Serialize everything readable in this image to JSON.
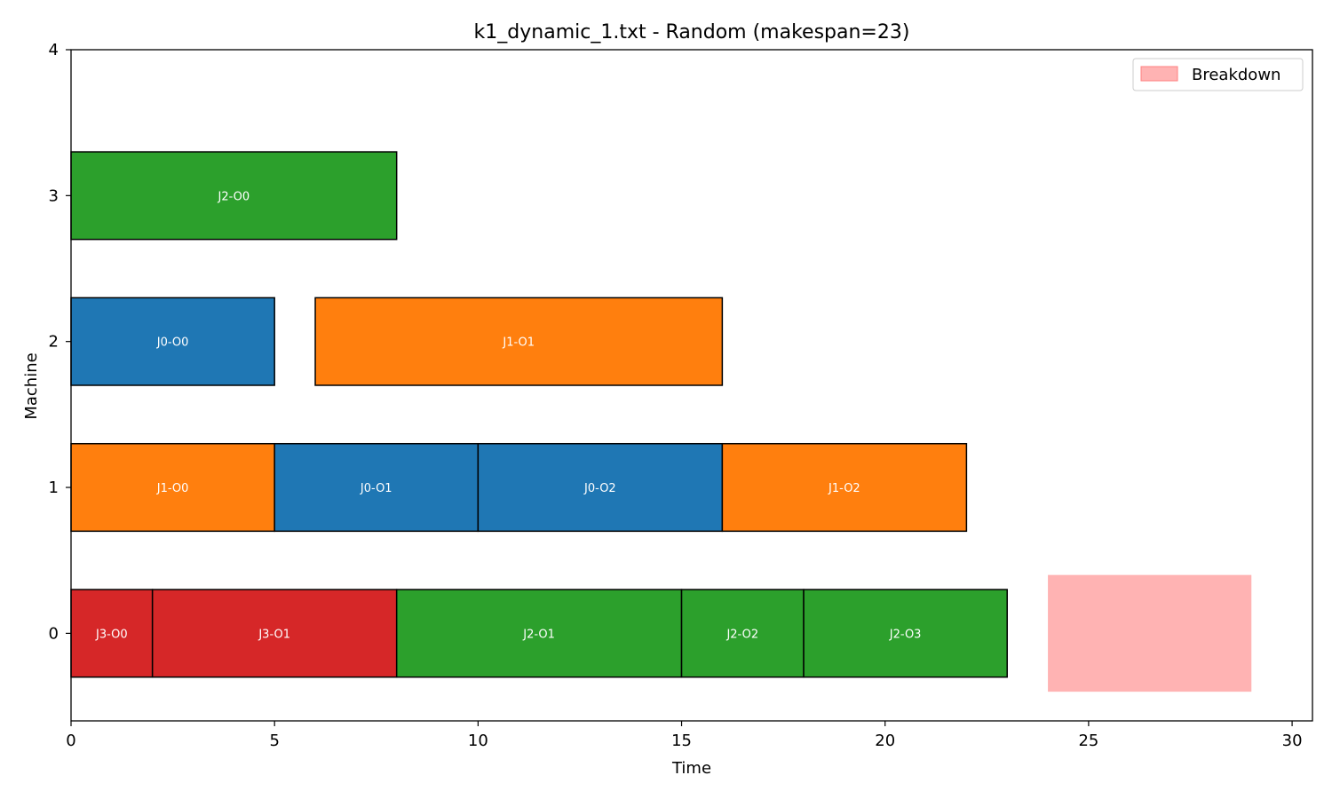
{
  "chart_data": {
    "type": "gantt",
    "title": "k1_dynamic_1.txt - Random (makespan=23)",
    "xlabel": "Time",
    "ylabel": "Machine",
    "xlim": [
      0,
      30.5
    ],
    "ylim": [
      -0.6,
      4
    ],
    "xticks": [
      0,
      5,
      10,
      15,
      20,
      25,
      30
    ],
    "yticks": [
      0,
      1,
      2,
      3,
      4
    ],
    "grid": false,
    "legend_position": "top-right",
    "legend": [
      {
        "label": "Breakdown",
        "color": "#ffb3b3",
        "edge": "#ff8080"
      }
    ],
    "job_colors": {
      "J0": "#1f77b4",
      "J1": "#ff7f0e",
      "J2": "#2ca02c",
      "J3": "#d62728"
    },
    "tasks": [
      {
        "label": "J3-O0",
        "job": "J3",
        "machine": 0,
        "start": 0,
        "end": 2
      },
      {
        "label": "J3-O1",
        "job": "J3",
        "machine": 0,
        "start": 2,
        "end": 8
      },
      {
        "label": "J2-O1",
        "job": "J2",
        "machine": 0,
        "start": 8,
        "end": 15
      },
      {
        "label": "J2-O2",
        "job": "J2",
        "machine": 0,
        "start": 15,
        "end": 18
      },
      {
        "label": "J2-O3",
        "job": "J2",
        "machine": 0,
        "start": 18,
        "end": 23
      },
      {
        "label": "J1-O0",
        "job": "J1",
        "machine": 1,
        "start": 0,
        "end": 5
      },
      {
        "label": "J0-O1",
        "job": "J0",
        "machine": 1,
        "start": 5,
        "end": 10
      },
      {
        "label": "J0-O2",
        "job": "J0",
        "machine": 1,
        "start": 10,
        "end": 16
      },
      {
        "label": "J1-O2",
        "job": "J1",
        "machine": 1,
        "start": 16,
        "end": 22
      },
      {
        "label": "J0-O0",
        "job": "J0",
        "machine": 2,
        "start": 0,
        "end": 5
      },
      {
        "label": "J1-O1",
        "job": "J1",
        "machine": 2,
        "start": 6,
        "end": 16
      },
      {
        "label": "J2-O0",
        "job": "J2",
        "machine": 3,
        "start": 0,
        "end": 8
      }
    ],
    "breakdowns": [
      {
        "machine": 0,
        "start": 24,
        "end": 29
      }
    ]
  }
}
